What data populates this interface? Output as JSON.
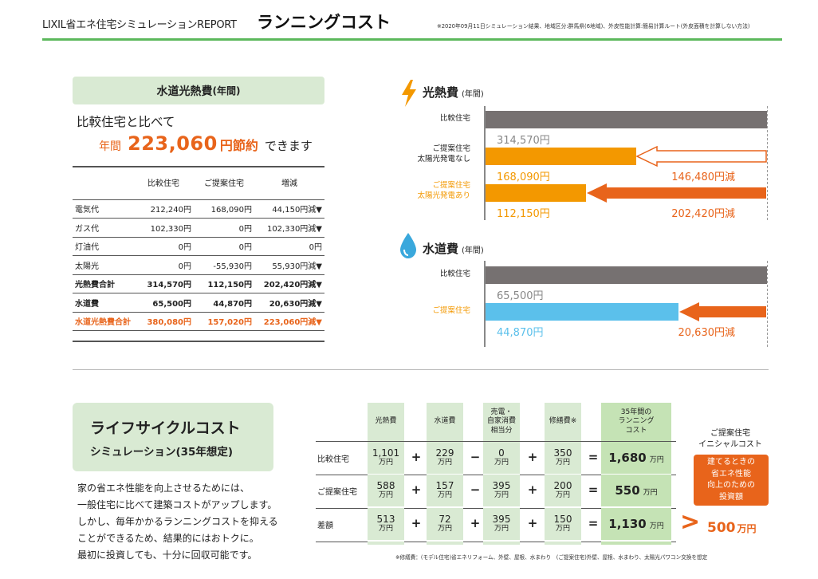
{
  "header": {
    "brand": "LIXIL省エネ住宅シミュレーションREPORT",
    "title": "ランニングコスト",
    "note": "※2020年09月11日シミュレーション結果、地域区分:群馬県(6地域)、外皮性能計算:簡易計算ルート(外皮面積を計算しない方法)"
  },
  "utility": {
    "title": "水道光熱費",
    "title_sub": "(年間)",
    "compare_text": "比較住宅と比べて",
    "save_prefix": "年間",
    "save_amount": "223,060",
    "save_unit": "円節約",
    "save_suffix": "できます",
    "table": {
      "headers": [
        "",
        "比較住宅",
        "ご提案住宅",
        "増減"
      ],
      "rows": [
        {
          "label": "電気代",
          "compare": "212,240円",
          "proposal": "168,090円",
          "diff": "44,150円減▼",
          "style": ""
        },
        {
          "label": "ガス代",
          "compare": "102,330円",
          "proposal": "0円",
          "diff": "102,330円減▼",
          "style": ""
        },
        {
          "label": "灯油代",
          "compare": "0円",
          "proposal": "0円",
          "diff": "0円",
          "style": ""
        },
        {
          "label": "太陽光",
          "compare": "0円",
          "proposal": "-55,930円",
          "diff": "55,930円減▼",
          "style": ""
        },
        {
          "label": "光熱費合計",
          "compare": "314,570円",
          "proposal": "112,150円",
          "diff": "202,420円減▼",
          "style": "bold"
        },
        {
          "label": "水道費",
          "compare": "65,500円",
          "proposal": "44,870円",
          "diff": "20,630円減▼",
          "style": "bold"
        },
        {
          "label": "水道光熱費合計",
          "compare": "380,080円",
          "proposal": "157,020円",
          "diff": "223,060円減▼",
          "style": "orange"
        }
      ]
    }
  },
  "energy_chart": {
    "title": "光熱費",
    "title_sub": "(年間)",
    "rows": [
      {
        "label": "比較住宅",
        "value": 314570,
        "value_text": "314,570円",
        "reduction_text": "",
        "color": "#767171",
        "label_color": "#222222",
        "value_color": "#888888",
        "reduction_style": "none"
      },
      {
        "label": "ご提案住宅\n太陽光発電なし",
        "value": 168090,
        "value_text": "168,090円",
        "reduction_text": "146,480円減",
        "color": "#f39800",
        "label_color": "#222222",
        "value_color": "#f39800",
        "reduction_style": "outline"
      },
      {
        "label": "ご提案住宅\n太陽光発電あり",
        "value": 112150,
        "value_text": "112,150円",
        "reduction_text": "202,420円減",
        "color": "#f39800",
        "label_color": "#f39800",
        "value_color": "#f39800",
        "reduction_style": "solid"
      }
    ],
    "max": 314570
  },
  "water_chart": {
    "title": "水道費",
    "title_sub": "(年間)",
    "rows": [
      {
        "label": "比較住宅",
        "value": 65500,
        "value_text": "65,500円",
        "reduction_text": "",
        "color": "#767171",
        "label_color": "#222222",
        "value_color": "#888888",
        "reduction_style": "none"
      },
      {
        "label": "ご提案住宅",
        "value": 44870,
        "value_text": "44,870円",
        "reduction_text": "20,630円減",
        "color": "#5bc0eb",
        "label_color": "#f39800",
        "value_color": "#5bc0eb",
        "reduction_style": "solid"
      }
    ],
    "max": 65500
  },
  "lcc": {
    "title": "ライフサイクルコスト",
    "subtitle": "シミュレーション(35年想定)",
    "description": [
      "家の省エネ性能を向上させるためには、",
      "一般住宅に比べて建築コストがアップします。",
      "しかし、毎年かかるランニングコストを抑える",
      "ことができるため、結果的にはおトクに。",
      "最初に投資しても、十分に回収可能です。"
    ],
    "columns": [
      "光熱費",
      "水道費",
      "売電・\n自家消費\n相当分",
      "修繕費※",
      "35年間の\nランニング\nコスト"
    ],
    "rows": [
      {
        "label": "比較住宅",
        "values": [
          "1,101",
          "229",
          "0",
          "350"
        ],
        "ops": [
          "+",
          "−",
          "+",
          "="
        ],
        "total": "1,680"
      },
      {
        "label": "ご提案住宅",
        "values": [
          "588",
          "157",
          "395",
          "200"
        ],
        "ops": [
          "+",
          "−",
          "+",
          "="
        ],
        "total": "550"
      },
      {
        "label": "差額",
        "values": [
          "513",
          "72",
          "395",
          "150"
        ],
        "ops": [
          "+",
          "+",
          "+",
          "="
        ],
        "total": "1,130"
      }
    ],
    "unit": "万円",
    "initial_cost_title": "ご提案住宅\nイニシャルコスト",
    "initial_cost_box": "建てるときの\n省エネ性能\n向上のための\n投資額",
    "initial_cost_arrow": ">",
    "initial_cost_value": "500",
    "initial_cost_unit": "万円",
    "footnote": "※修繕費：(モデル住宅)省エネリフォーム、外壁、屋根、水まわり　(ご提案住宅)外壁、屋根、水まわり、太陽光パワコン交換を想定"
  }
}
